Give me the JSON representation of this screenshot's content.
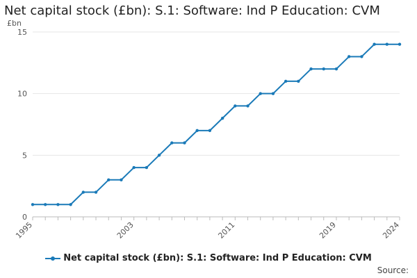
{
  "chart_data": {
    "type": "line",
    "title": "Net capital stock (£bn): S.1: Software: Ind P Education: CVM",
    "ylabel": "£bn",
    "xlabel": "",
    "x": [
      1995,
      1996,
      1997,
      1998,
      1999,
      2000,
      2001,
      2002,
      2003,
      2004,
      2005,
      2006,
      2007,
      2008,
      2009,
      2010,
      2011,
      2012,
      2013,
      2014,
      2015,
      2016,
      2017,
      2018,
      2019,
      2020,
      2021,
      2022,
      2023,
      2024
    ],
    "series": [
      {
        "name": "Net capital stock (£bn): S.1: Software: Ind P Education: CVM",
        "values": [
          1,
          1,
          1,
          1,
          2,
          2,
          3,
          3,
          4,
          4,
          5,
          6,
          6,
          7,
          7,
          8,
          9,
          9,
          10,
          10,
          11,
          11,
          12,
          12,
          12,
          13,
          13,
          14,
          14,
          14
        ]
      }
    ],
    "xlim": [
      1995,
      2024
    ],
    "ylim": [
      0,
      15
    ],
    "y_ticks": [
      0,
      5,
      10,
      15
    ],
    "x_ticks": [
      1995,
      2003,
      2011,
      2019,
      2024
    ],
    "grid": "horizontal",
    "legend_position": "bottom",
    "line_color": "#1a7ab8",
    "grid_color": "#e6e6e6",
    "axis_color": "#bbbbbb"
  },
  "footer": {
    "source_label": "Source:"
  }
}
